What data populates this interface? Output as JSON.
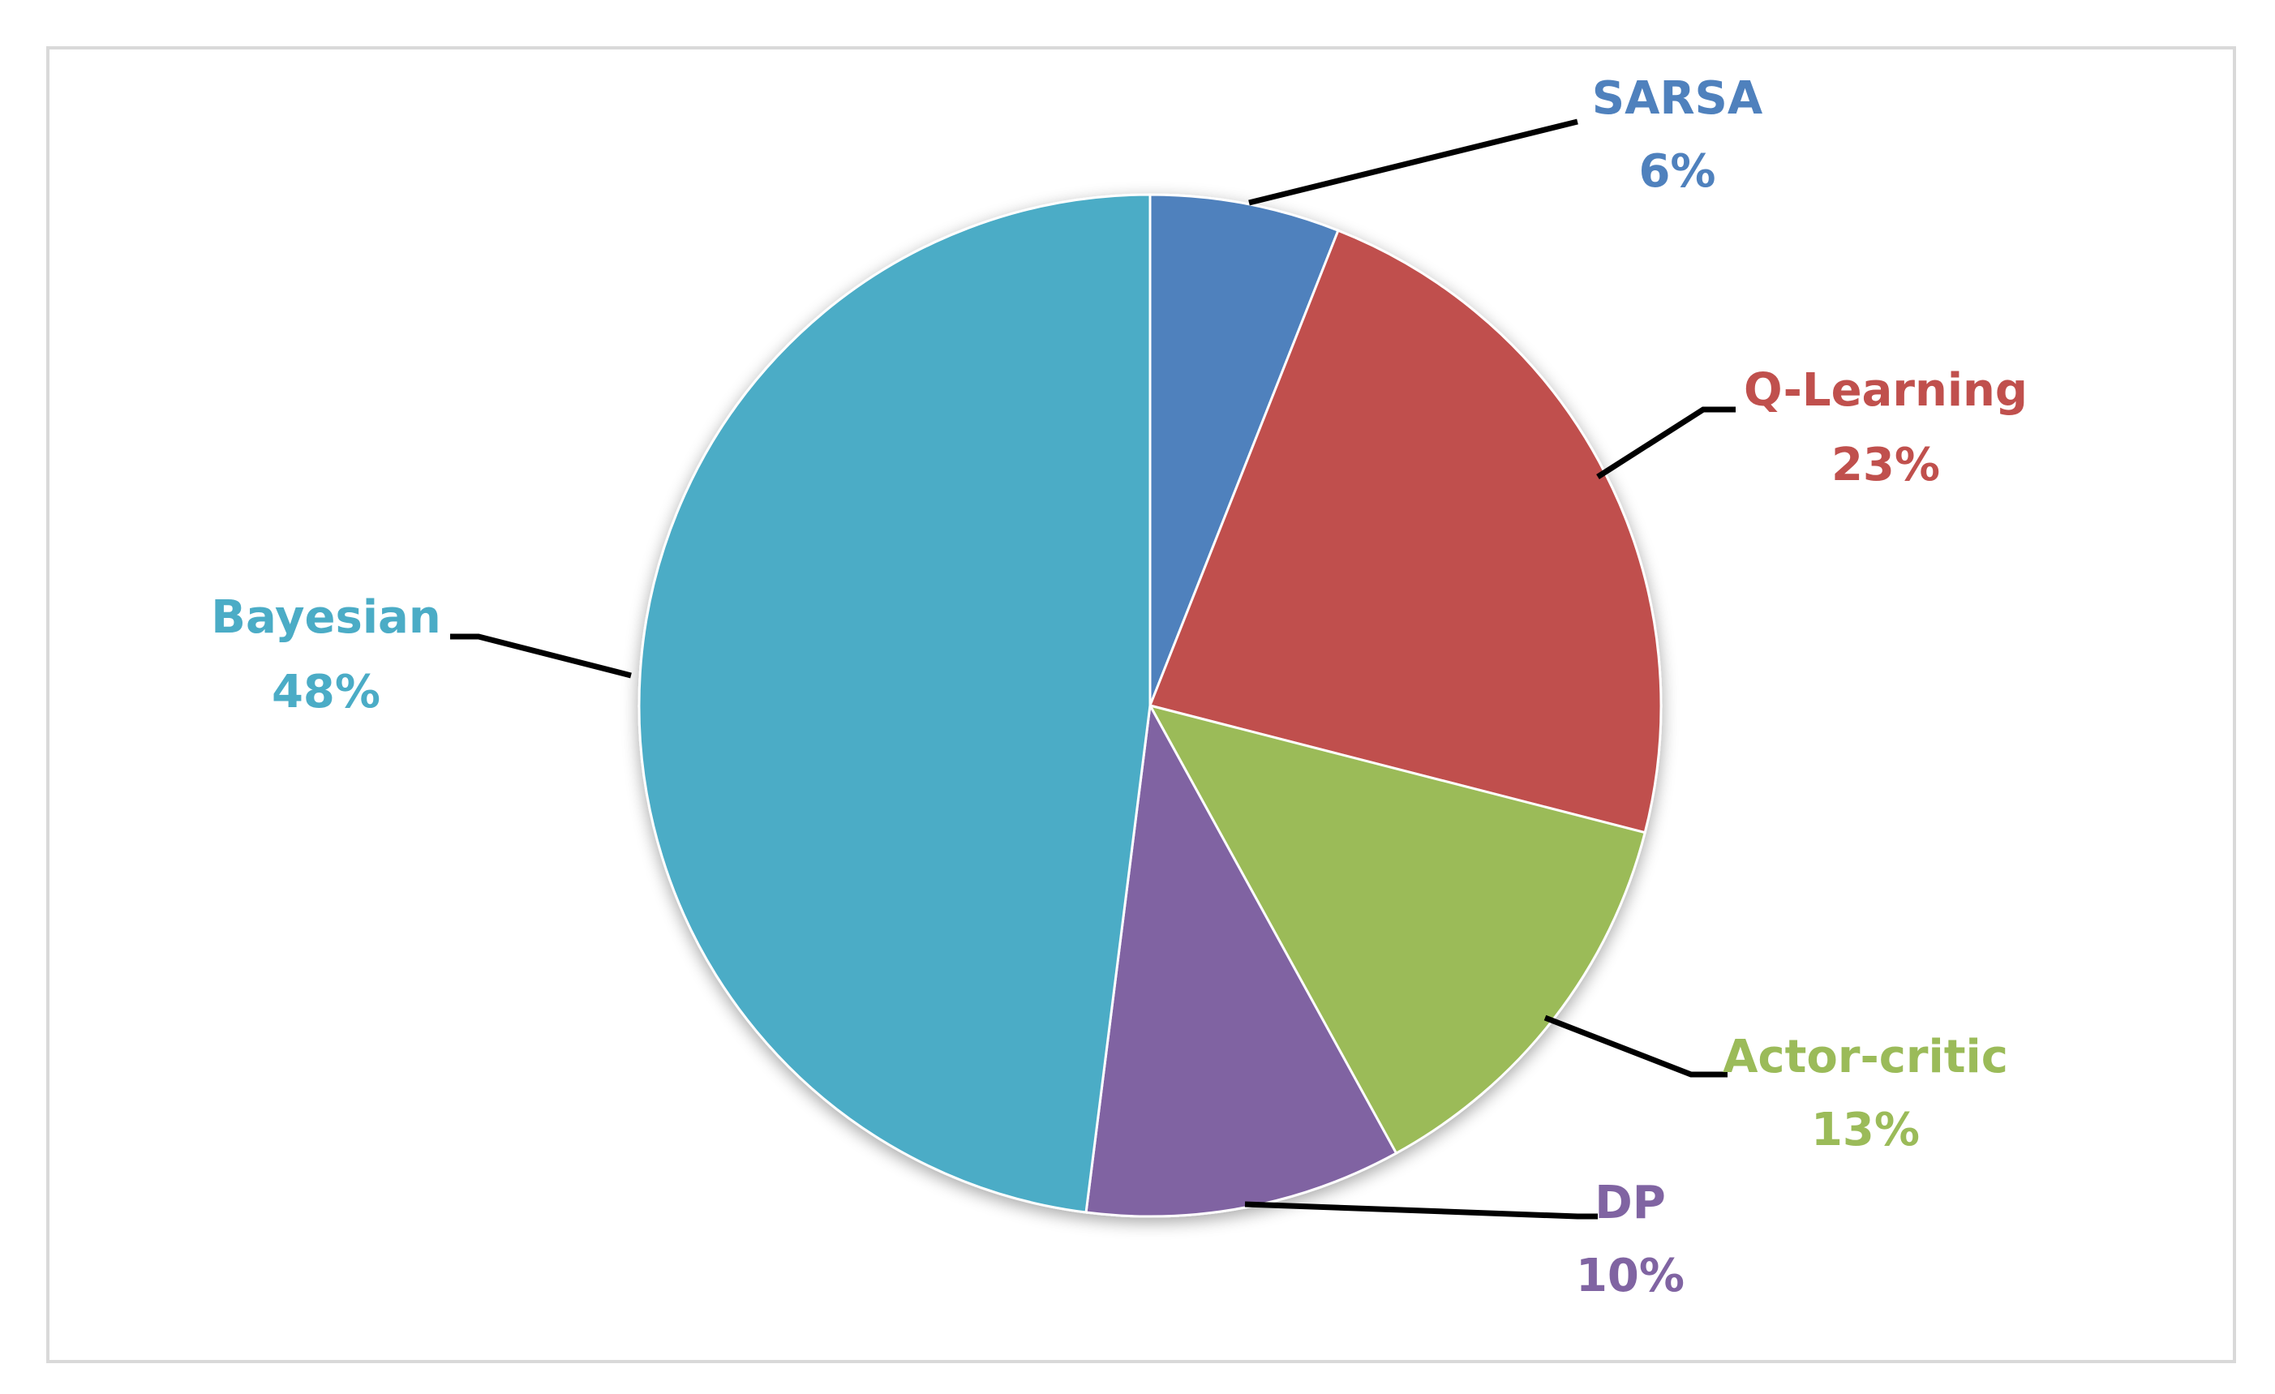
{
  "chart_data": {
    "type": "pie",
    "categories": [
      "SARSA",
      "Q-Learning",
      "Actor-critic",
      "DP",
      "Bayesian"
    ],
    "values": [
      6,
      23,
      13,
      10,
      48
    ],
    "percent_labels": [
      "6%",
      "23%",
      "13%",
      "10%",
      "48%"
    ],
    "colors": [
      "#4f81bd",
      "#c0504d",
      "#9bbb59",
      "#8064a2",
      "#4bacc6"
    ],
    "start_angle_deg": 0,
    "direction": "clockwise",
    "data_labels": "outside-with-leader-lines",
    "legend": "none"
  }
}
